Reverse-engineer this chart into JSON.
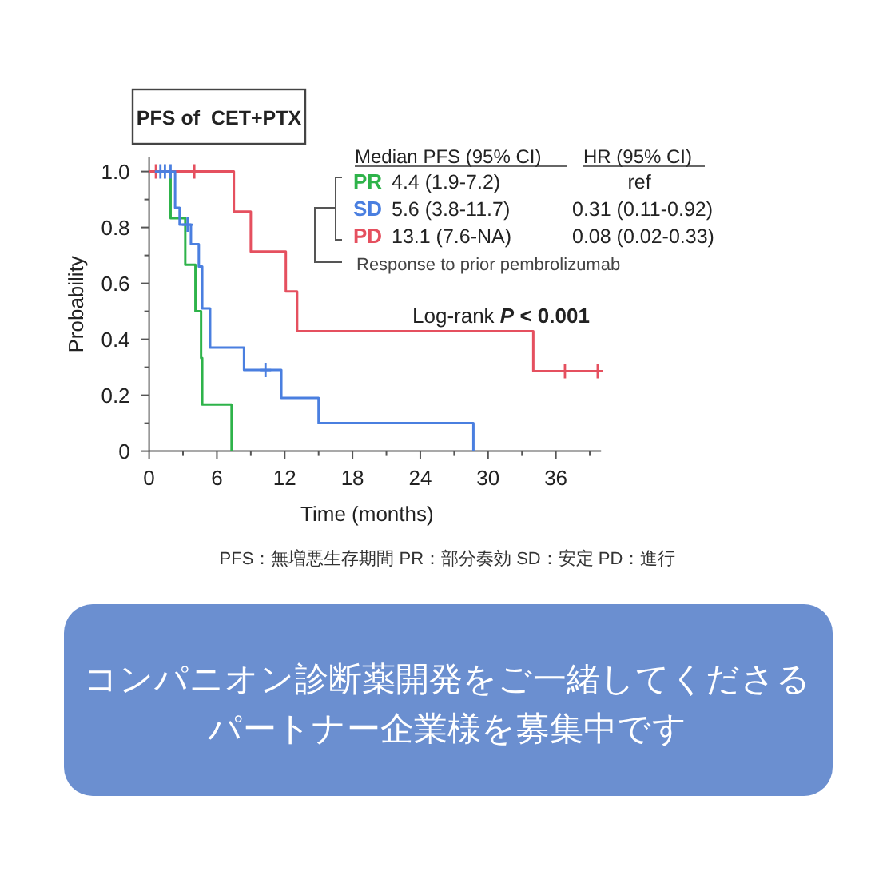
{
  "chart_data": {
    "type": "step",
    "title": "PFS of  CET+PTX",
    "xlabel": "Time (months)",
    "ylabel": "Probability",
    "xlim": [
      0,
      40
    ],
    "ylim": [
      0,
      1.05
    ],
    "xticks": [
      0,
      {
        "value": 3,
        "label": null
      },
      6,
      {
        "value": 9,
        "label": null
      },
      12,
      {
        "value": 15,
        "label": null
      },
      18,
      {
        "value": 21,
        "label": null
      },
      24,
      {
        "value": 27,
        "label": null
      },
      30,
      {
        "value": 33,
        "label": null
      },
      36,
      {
        "value": 39,
        "label": null
      }
    ],
    "yticks": [
      0,
      {
        "value": 0.1,
        "label": null
      },
      0.2,
      {
        "value": 0.3,
        "label": null
      },
      0.4,
      {
        "value": 0.5,
        "label": null
      },
      0.6,
      {
        "value": 0.7,
        "label": null
      },
      0.8,
      {
        "value": 0.9,
        "label": null
      },
      {
        "value": 1.0,
        "label": "1.0"
      }
    ],
    "grid": false,
    "legend": "top right",
    "series": [
      {
        "name": "PR",
        "color": "#2eb34a",
        "x": [
          0,
          1.9,
          3.2,
          4.1,
          4.6,
          4.7,
          7.3
        ],
        "values": [
          1,
          0.833,
          0.667,
          0.5,
          0.333,
          0.167,
          0
        ]
      },
      {
        "name": "SD",
        "color": "#4a7fe0",
        "x": [
          0,
          2.3,
          2.7,
          3.7,
          4.4,
          4.7,
          5.4,
          8.4,
          11.7,
          15.0,
          28.7
        ],
        "values": [
          1,
          0.87,
          0.81,
          0.74,
          0.66,
          0.51,
          0.37,
          0.29,
          0.19,
          0.1,
          0
        ]
      },
      {
        "name": "PD",
        "color": "#e5505f",
        "x": [
          0,
          7.5,
          9.0,
          12.1,
          13.1,
          34.0,
          39.7
        ],
        "values": [
          1,
          0.857,
          0.714,
          0.571,
          0.429,
          0.286,
          0.286
        ]
      },
      {
        "type": "scatter",
        "marker": "cross",
        "color": "#e5505f",
        "x": [
          0.6,
          4.0,
          36.8,
          39.7
        ],
        "values": [
          1,
          1,
          0.286,
          0.286
        ]
      },
      {
        "type": "scatter",
        "marker": "cross",
        "color": "#4a7fe0",
        "x": [
          1.0,
          1.4,
          1.9,
          3.4,
          10.3
        ],
        "values": [
          1,
          1,
          1,
          0.81,
          0.29
        ]
      }
    ],
    "annotations": [
      "Median PFS (95% CI)",
      "HR (95% CI)",
      "4.4 (1.9-7.2)",
      "ref",
      "5.6 (3.8-11.7)",
      "0.31 (0.11-0.92)",
      "13.1 (7.6-NA)",
      "0.08 (0.02-0.33)",
      "Response to prior pembrolizumab",
      "Log-rank ***P* < 0.001**",
      "PFS：無増悪生存期間  PR：部分奏効  SD：安定  PD：進行",
      "コンパニオン診断薬開発をご一緒してくださる",
      "パートナー企業様を募集中です"
    ]
  }
}
